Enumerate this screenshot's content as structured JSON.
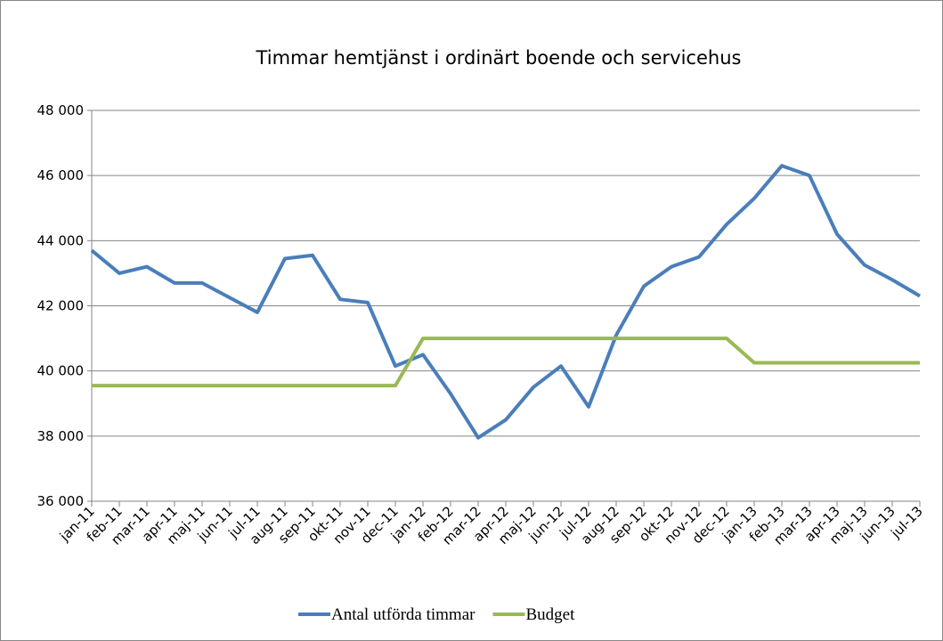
{
  "chart_data": {
    "type": "line",
    "title": "Timmar hemtjänst i ordinärt boende och servicehus",
    "categories": [
      "jan-11",
      "feb-11",
      "mar-11",
      "apr-11",
      "maj-11",
      "jun-11",
      "jul-11",
      "aug-11",
      "sep-11",
      "okt-11",
      "nov-11",
      "dec-11",
      "jan-12",
      "feb-12",
      "mar-12",
      "apr-12",
      "maj-12",
      "jun-12",
      "jul-12",
      "aug-12",
      "sep-12",
      "okt-12",
      "nov-12",
      "dec-12",
      "jan-13",
      "feb-13",
      "mar-13",
      "apr-13",
      "maj-13",
      "jun-13",
      "jul-13"
    ],
    "series": [
      {
        "name": "Antal utförda timmar",
        "color": "#4a7ebb",
        "values": [
          43700,
          43000,
          43200,
          42700,
          42700,
          42250,
          41800,
          43450,
          43550,
          42200,
          42100,
          40150,
          40500,
          39300,
          37950,
          38500,
          39500,
          40150,
          38900,
          41100,
          42600,
          43200,
          43500,
          44500,
          45300,
          46300,
          46000,
          44200,
          43250,
          42800,
          42300
        ]
      },
      {
        "name": "Budget",
        "color": "#98b954",
        "values": [
          39550,
          39550,
          39550,
          39550,
          39550,
          39550,
          39550,
          39550,
          39550,
          39550,
          39550,
          39550,
          41000,
          41000,
          41000,
          41000,
          41000,
          41000,
          41000,
          41000,
          41000,
          41000,
          41000,
          41000,
          40250,
          40250,
          40250,
          40250,
          40250,
          40250,
          40250
        ]
      }
    ],
    "ylim": [
      36000,
      48000
    ],
    "yticks": [
      {
        "value": 36000,
        "label": "36 000"
      },
      {
        "value": 38000,
        "label": "38 000"
      },
      {
        "value": 40000,
        "label": "40 000"
      },
      {
        "value": 42000,
        "label": "42 000"
      },
      {
        "value": 44000,
        "label": "44 000"
      },
      {
        "value": 46000,
        "label": "46 000"
      },
      {
        "value": 48000,
        "label": "48 000"
      }
    ],
    "grid": true,
    "legend": "bottom"
  }
}
